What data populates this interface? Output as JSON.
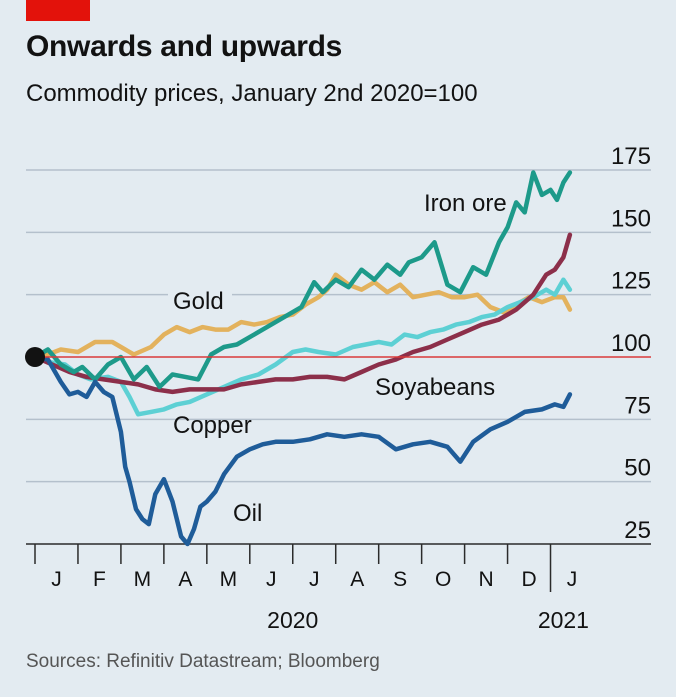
{
  "header": {
    "title": "Onwards and upwards",
    "subtitle": "Commodity prices, January 2nd 2020=100"
  },
  "footer": {
    "source": "Sources: Refinitiv Datastream; Bloomberg"
  },
  "colors": {
    "background": "#e3ebf1",
    "brand_red": "#e3120b",
    "grid": "#b4c0cc",
    "baseline": "#d93a3a",
    "iron_ore": "#1d9a8a",
    "gold": "#e3b25d",
    "copper": "#5dd0d4",
    "soyabeans": "#8c2f4a",
    "oil": "#1f5c99"
  },
  "chart_data": {
    "type": "line",
    "title": "Onwards and upwards",
    "subtitle": "Commodity prices, January 2nd 2020=100",
    "xlabel": "",
    "ylabel": "",
    "ylim": [
      25,
      175
    ],
    "yticks": [
      175,
      150,
      125,
      100,
      75,
      50,
      25
    ],
    "xlim": [
      0,
      12.5
    ],
    "month_labels": [
      "J",
      "F",
      "M",
      "A",
      "M",
      "J",
      "J",
      "A",
      "S",
      "O",
      "N",
      "D",
      "J"
    ],
    "year_labels": [
      "2020",
      "2021"
    ],
    "reference_line": 100,
    "start_point": [
      0,
      100
    ],
    "grid": true,
    "series": [
      {
        "name": "Iron ore",
        "color": "#1d9a8a",
        "x": [
          0,
          0.3,
          0.6,
          0.9,
          1.1,
          1.4,
          1.7,
          2.0,
          2.3,
          2.6,
          2.9,
          3.2,
          3.5,
          3.8,
          4.1,
          4.4,
          4.7,
          5.0,
          5.3,
          5.6,
          5.9,
          6.2,
          6.5,
          6.7,
          7.0,
          7.3,
          7.6,
          7.9,
          8.2,
          8.5,
          8.7,
          9.0,
          9.3,
          9.6,
          9.9,
          10.2,
          10.5,
          10.8,
          11.0,
          11.2,
          11.4,
          11.6,
          11.8,
          12.0,
          12.15,
          12.3,
          12.45
        ],
        "values": [
          100,
          103,
          97,
          94,
          96,
          91,
          97,
          100,
          91,
          96,
          88,
          93,
          92,
          91,
          101,
          104,
          105,
          108,
          111,
          114,
          117,
          120,
          130,
          126,
          131,
          128,
          135,
          131,
          137,
          133,
          138,
          140,
          146,
          129,
          126,
          136,
          133,
          146,
          152,
          162,
          158,
          174,
          165,
          167,
          163,
          170,
          174
        ]
      },
      {
        "name": "Gold",
        "color": "#e3b25d",
        "x": [
          0,
          0.3,
          0.6,
          1.0,
          1.4,
          1.8,
          2.0,
          2.3,
          2.7,
          3.0,
          3.3,
          3.6,
          3.9,
          4.2,
          4.5,
          4.8,
          5.1,
          5.4,
          5.7,
          6.0,
          6.3,
          6.6,
          6.8,
          7.0,
          7.3,
          7.6,
          7.9,
          8.2,
          8.5,
          8.8,
          9.1,
          9.4,
          9.7,
          10.0,
          10.3,
          10.6,
          10.9,
          11.2,
          11.5,
          11.8,
          12.1,
          12.3,
          12.45
        ],
        "values": [
          100,
          101,
          103,
          102,
          106,
          106,
          104,
          101,
          104,
          109,
          112,
          110,
          112,
          111,
          111,
          114,
          113,
          114,
          116,
          117,
          121,
          124,
          127,
          133,
          129,
          127,
          130,
          126,
          129,
          124,
          125,
          126,
          124,
          124,
          125,
          120,
          118,
          121,
          124,
          122,
          124,
          124,
          119
        ]
      },
      {
        "name": "Copper",
        "color": "#5dd0d4",
        "x": [
          0,
          0.3,
          0.7,
          1.0,
          1.3,
          1.7,
          2.0,
          2.2,
          2.4,
          2.7,
          3.0,
          3.3,
          3.6,
          4.0,
          4.4,
          4.8,
          5.2,
          5.6,
          6.0,
          6.3,
          6.6,
          7.0,
          7.4,
          7.7,
          8.0,
          8.3,
          8.6,
          8.9,
          9.2,
          9.5,
          9.8,
          10.1,
          10.4,
          10.7,
          11.0,
          11.3,
          11.6,
          11.9,
          12.1,
          12.3,
          12.45
        ],
        "values": [
          100,
          98,
          97,
          93,
          91,
          92,
          90,
          84,
          77,
          78,
          79,
          81,
          82,
          85,
          88,
          91,
          93,
          97,
          102,
          103,
          102,
          101,
          104,
          105,
          106,
          105,
          109,
          108,
          110,
          111,
          113,
          114,
          116,
          117,
          120,
          122,
          124,
          127,
          125,
          131,
          127
        ]
      },
      {
        "name": "Soyabeans",
        "color": "#8c2f4a",
        "x": [
          0,
          0.4,
          0.8,
          1.2,
          1.6,
          2.0,
          2.4,
          2.8,
          3.2,
          3.6,
          4.0,
          4.4,
          4.8,
          5.2,
          5.6,
          6.0,
          6.4,
          6.8,
          7.2,
          7.6,
          8.0,
          8.4,
          8.8,
          9.2,
          9.6,
          10.0,
          10.4,
          10.8,
          11.2,
          11.6,
          11.9,
          12.1,
          12.3,
          12.45
        ],
        "values": [
          100,
          97,
          94,
          92,
          91,
          90,
          89,
          87,
          86,
          87,
          87,
          87,
          89,
          90,
          91,
          91,
          92,
          92,
          91,
          94,
          97,
          99,
          102,
          104,
          107,
          110,
          113,
          115,
          119,
          125,
          133,
          135,
          140,
          149
        ]
      },
      {
        "name": "Oil",
        "color": "#1f5c99",
        "x": [
          0,
          0.3,
          0.6,
          0.8,
          1.0,
          1.2,
          1.4,
          1.6,
          1.8,
          2.0,
          2.1,
          2.2,
          2.35,
          2.5,
          2.65,
          2.8,
          3.0,
          3.2,
          3.4,
          3.55,
          3.7,
          3.85,
          4.0,
          4.2,
          4.4,
          4.7,
          5.0,
          5.3,
          5.6,
          6.0,
          6.4,
          6.8,
          7.2,
          7.6,
          8.0,
          8.4,
          8.8,
          9.2,
          9.6,
          9.9,
          10.2,
          10.6,
          11.0,
          11.4,
          11.8,
          12.1,
          12.3,
          12.45
        ],
        "values": [
          100,
          99,
          90,
          85,
          86,
          84,
          90,
          86,
          84,
          70,
          56,
          50,
          39,
          35,
          33,
          45,
          51,
          42,
          28,
          25,
          31,
          40,
          42,
          46,
          53,
          60,
          63,
          65,
          66,
          66,
          67,
          69,
          68,
          69,
          68,
          63,
          65,
          66,
          64,
          58,
          66,
          71,
          74,
          78,
          79,
          81,
          80,
          85
        ]
      }
    ]
  },
  "labels": {
    "iron_ore": "Iron ore",
    "gold": "Gold",
    "copper": "Copper",
    "soyabeans": "Soyabeans",
    "oil": "Oil"
  }
}
